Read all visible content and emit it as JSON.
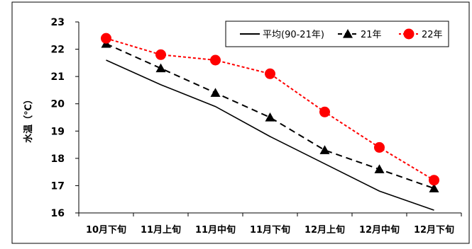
{
  "chart_data": {
    "type": "line",
    "title": "",
    "xlabel": "",
    "ylabel": "水温（℃）",
    "ylim": [
      16,
      23
    ],
    "yticks": [
      16,
      17,
      18,
      19,
      20,
      21,
      22,
      23
    ],
    "categories": [
      "10月下旬",
      "11月上旬",
      "11月中旬",
      "11月下旬",
      "12月上旬",
      "12月中旬",
      "12月下旬"
    ],
    "grid": false,
    "legend_position": "top-right",
    "series": [
      {
        "name": "平均(90-21年)",
        "values": [
          21.6,
          20.7,
          19.9,
          18.8,
          17.8,
          16.8,
          16.1
        ],
        "color": "#000000",
        "line_style": "solid",
        "marker": "none"
      },
      {
        "name": "21年",
        "values": [
          22.2,
          21.3,
          20.4,
          19.5,
          18.3,
          17.6,
          16.9
        ],
        "color": "#000000",
        "line_style": "dashed",
        "marker": "triangle"
      },
      {
        "name": "22年",
        "values": [
          22.4,
          21.8,
          21.6,
          21.1,
          19.7,
          18.4,
          17.2
        ],
        "color": "#ff0000",
        "line_style": "dotted",
        "marker": "circle"
      }
    ]
  }
}
